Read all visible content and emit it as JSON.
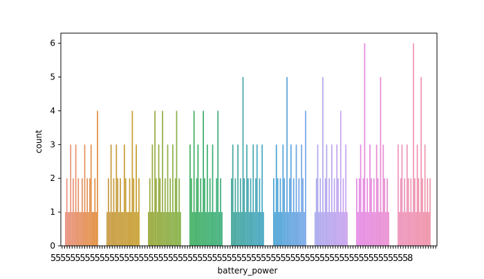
{
  "chart_data": {
    "type": "bar",
    "title": "",
    "xlabel": "battery_power",
    "ylabel": "count",
    "ylim": [
      0,
      6.3
    ],
    "yticks": [
      0,
      1,
      2,
      3,
      4,
      5,
      6
    ],
    "grid": false,
    "legend": "none",
    "seed": 17,
    "x_tick_label_glyph": "5",
    "x_tick_label_tail": "8",
    "cluster_colors": [
      "#e8917f",
      "#c79b43",
      "#9aa83a",
      "#42b062",
      "#43a699",
      "#4aa4d4",
      "#a9a9ee",
      "#e58be6",
      "#ee93bb"
    ],
    "cluster_edge_colors": [
      "#e28e3c",
      "#c8a032",
      "#86b24a",
      "#3fb07e",
      "#45a6c2",
      "#7aa7e8",
      "#c9a2ee",
      "#ea8ed0",
      "#ef92a8"
    ],
    "values": [
      1,
      2,
      1,
      1,
      3,
      1,
      2,
      1,
      3,
      1,
      2,
      1,
      1,
      2,
      1,
      3,
      1,
      2,
      1,
      2,
      3,
      1,
      1,
      2,
      1,
      4,
      1,
      2,
      1,
      3,
      1,
      2,
      1,
      3,
      2,
      1,
      2,
      1,
      1,
      3,
      2,
      1,
      1,
      2,
      1,
      4,
      2,
      1,
      3,
      1,
      2,
      1,
      2,
      1,
      3,
      1,
      4,
      2,
      1,
      3,
      2,
      1,
      4,
      1,
      2,
      1,
      3,
      1,
      2,
      1,
      3,
      1,
      2,
      4,
      1,
      2,
      1,
      3,
      2,
      1,
      4,
      1,
      2,
      3,
      1,
      2,
      1,
      4,
      2,
      1,
      3,
      1,
      2,
      1,
      3,
      1,
      1,
      2,
      4,
      1,
      2,
      1,
      2,
      3,
      1,
      2,
      1,
      3,
      1,
      2,
      1,
      5,
      2,
      1,
      3,
      2,
      1,
      2,
      1,
      3,
      1,
      2,
      3,
      1,
      2,
      1,
      3,
      1,
      2,
      1,
      3,
      2,
      1,
      2,
      1,
      3,
      2,
      1,
      5,
      1,
      2,
      3,
      1,
      2,
      1,
      3,
      1,
      2,
      1,
      3,
      2,
      1,
      4,
      1,
      2,
      3,
      1,
      2,
      1,
      5,
      1,
      2,
      3,
      1,
      2,
      1,
      3,
      1,
      2,
      1,
      3,
      2,
      1,
      4,
      1,
      2,
      1,
      3,
      1,
      2,
      1,
      2,
      3,
      1,
      2,
      6,
      1,
      2,
      1,
      3,
      2,
      1,
      2,
      1,
      3,
      2,
      1,
      5,
      1,
      3,
      2,
      1,
      2,
      1,
      3,
      1,
      2,
      3,
      1,
      2,
      1,
      3,
      2,
      1,
      2,
      1,
      6,
      2,
      1,
      3,
      2,
      1,
      5,
      2,
      1,
      3,
      1,
      2,
      1,
      2
    ]
  }
}
